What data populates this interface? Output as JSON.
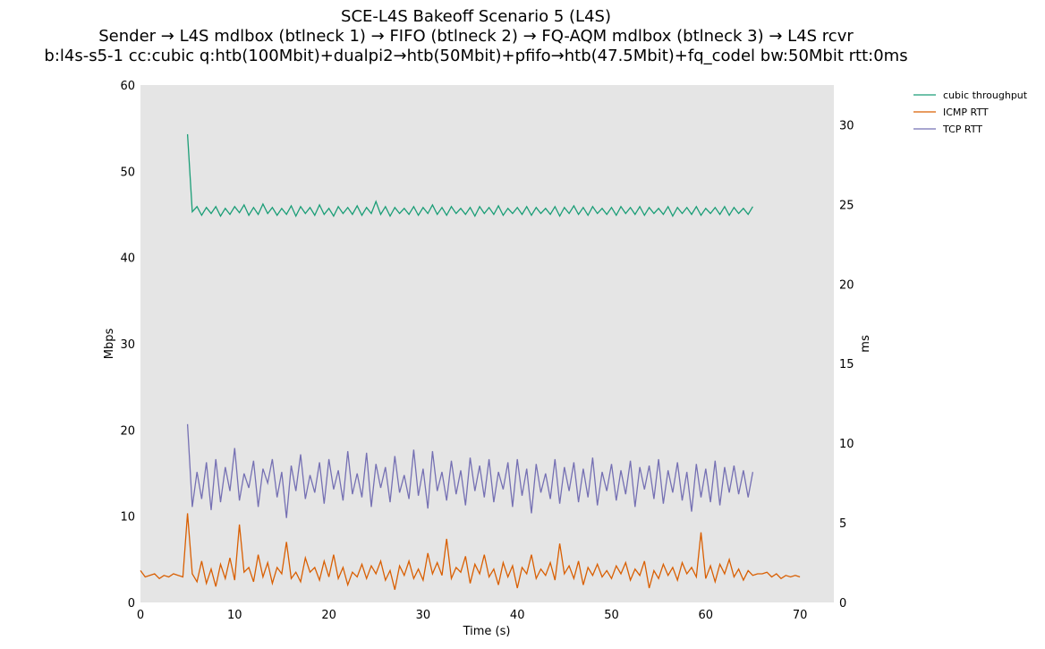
{
  "chart_data": {
    "type": "line",
    "title": [
      "SCE-L4S Bakeoff Scenario 5 (L4S)",
      "Sender → L4S mdlbox (btlneck 1) → FIFO (btlneck 2) → FQ-AQM mdlbox (btlneck 3) → L4S rcvr",
      "b:l4s-s5-1 cc:cubic q:htb(100Mbit)+dualpi2→htb(50Mbit)+pfifo→htb(47.5Mbit)+fq_codel bw:50Mbit rtt:0ms"
    ],
    "xlabel": "Time (s)",
    "ylabel_left": "Mbps",
    "ylabel_right": "ms",
    "xlim": [
      0,
      73.6
    ],
    "ylim_left": [
      0,
      60
    ],
    "ylim_right": [
      0,
      32.5
    ],
    "xticks": [
      0,
      10,
      20,
      30,
      40,
      50,
      60,
      70
    ],
    "yticks_left": [
      0,
      10,
      20,
      30,
      40,
      50,
      60
    ],
    "yticks_right": [
      0,
      5,
      10,
      15,
      20,
      25,
      30
    ],
    "grid": false,
    "background": "#e5e5e5",
    "legend_placement": "outside-top-right",
    "series": [
      {
        "name": "cubic throughput",
        "axis": "left",
        "color": "#1b9e77",
        "x_start": 5.0,
        "x_step": 0.5,
        "values": [
          54.3,
          45.3,
          45.9,
          44.9,
          45.8,
          45.1,
          45.9,
          44.8,
          45.7,
          45.0,
          45.9,
          45.2,
          46.1,
          44.9,
          45.8,
          45.0,
          46.2,
          45.1,
          45.8,
          44.9,
          45.7,
          45.0,
          46.0,
          44.8,
          45.9,
          45.1,
          45.8,
          44.9,
          46.1,
          45.0,
          45.7,
          44.8,
          45.9,
          45.1,
          45.8,
          45.0,
          46.0,
          44.9,
          45.8,
          45.1,
          46.5,
          45.0,
          45.9,
          44.8,
          45.8,
          45.1,
          45.7,
          45.0,
          45.9,
          44.9,
          45.8,
          45.1,
          46.1,
          45.0,
          45.8,
          44.9,
          45.9,
          45.1,
          45.7,
          45.0,
          45.8,
          44.8,
          45.9,
          45.1,
          45.8,
          45.0,
          46.0,
          44.9,
          45.7,
          45.1,
          45.8,
          45.0,
          45.9,
          44.9,
          45.8,
          45.1,
          45.7,
          45.0,
          45.9,
          44.8,
          45.8,
          45.1,
          46.0,
          45.0,
          45.8,
          44.9,
          45.9,
          45.1,
          45.7,
          45.0,
          45.8,
          44.9,
          45.9,
          45.1,
          45.8,
          45.0,
          45.9,
          44.9,
          45.8,
          45.1,
          45.7,
          45.0,
          45.9,
          44.8,
          45.8,
          45.1,
          45.8,
          45.0,
          45.9,
          44.9,
          45.7,
          45.1,
          45.8,
          45.0,
          45.9,
          44.9,
          45.8,
          45.1,
          45.7,
          45.0,
          45.9
        ]
      },
      {
        "name": "ICMP RTT",
        "axis": "right",
        "color": "#d95f02",
        "x_start": 0.0,
        "x_step": 0.5,
        "values": [
          2.0,
          1.6,
          1.7,
          1.8,
          1.5,
          1.7,
          1.6,
          1.8,
          1.7,
          1.6,
          5.6,
          1.8,
          1.3,
          2.6,
          1.2,
          2.1,
          1.0,
          2.4,
          1.5,
          2.8,
          1.4,
          4.9,
          1.9,
          2.2,
          1.3,
          3.0,
          1.6,
          2.5,
          1.2,
          2.2,
          1.8,
          3.8,
          1.5,
          1.9,
          1.3,
          2.8,
          1.9,
          2.2,
          1.4,
          2.6,
          1.6,
          3.0,
          1.5,
          2.2,
          1.1,
          1.9,
          1.6,
          2.4,
          1.5,
          2.3,
          1.8,
          2.6,
          1.4,
          2.0,
          0.8,
          2.3,
          1.7,
          2.6,
          1.5,
          2.1,
          1.4,
          3.1,
          1.8,
          2.5,
          1.7,
          4.0,
          1.5,
          2.2,
          1.9,
          2.9,
          1.2,
          2.4,
          1.8,
          3.0,
          1.6,
          2.1,
          1.1,
          2.5,
          1.6,
          2.3,
          0.9,
          2.2,
          1.8,
          3.0,
          1.5,
          2.1,
          1.7,
          2.5,
          1.4,
          3.7,
          1.8,
          2.3,
          1.5,
          2.6,
          1.1,
          2.2,
          1.7,
          2.4,
          1.6,
          2.0,
          1.5,
          2.3,
          1.8,
          2.5,
          1.4,
          2.1,
          1.7,
          2.6,
          0.9,
          2.0,
          1.5,
          2.4,
          1.7,
          2.2,
          1.4,
          2.5,
          1.8,
          2.2,
          1.6,
          4.4,
          1.5,
          2.3,
          1.3,
          2.4,
          1.8,
          2.7,
          1.6,
          2.1,
          1.4,
          2.0,
          1.7,
          1.8,
          1.8,
          1.9,
          1.6,
          1.8,
          1.5,
          1.7,
          1.6,
          1.7,
          1.6
        ]
      },
      {
        "name": "TCP RTT",
        "axis": "right",
        "color": "#7570b3",
        "x_start": 5.0,
        "x_step": 0.5,
        "values": [
          11.2,
          6.0,
          8.2,
          6.5,
          8.8,
          5.8,
          9.0,
          6.3,
          8.5,
          7.0,
          9.7,
          6.4,
          8.1,
          7.2,
          8.9,
          6.0,
          8.4,
          7.5,
          9.0,
          6.6,
          8.2,
          5.3,
          8.6,
          7.0,
          9.3,
          6.5,
          8.0,
          6.9,
          8.8,
          6.2,
          9.0,
          7.1,
          8.3,
          6.4,
          9.5,
          6.8,
          8.1,
          6.6,
          9.4,
          6.0,
          8.7,
          7.2,
          8.5,
          6.3,
          9.2,
          6.9,
          8.0,
          6.5,
          9.6,
          6.7,
          8.4,
          5.9,
          9.5,
          7.0,
          8.2,
          6.4,
          8.9,
          6.8,
          8.3,
          6.1,
          9.1,
          7.0,
          8.6,
          6.6,
          9.0,
          6.3,
          8.2,
          7.1,
          8.8,
          6.0,
          9.0,
          6.7,
          8.4,
          5.6,
          8.7,
          6.9,
          8.1,
          6.5,
          9.0,
          6.2,
          8.5,
          7.0,
          8.8,
          6.3,
          8.4,
          6.6,
          9.1,
          6.1,
          8.2,
          7.0,
          8.7,
          6.4,
          8.3,
          6.8,
          8.9,
          6.0,
          8.5,
          7.1,
          8.6,
          6.5,
          9.0,
          6.2,
          8.3,
          6.9,
          8.8,
          6.4,
          8.2,
          5.7,
          8.7,
          6.6,
          8.4,
          6.3,
          8.9,
          6.1,
          8.5,
          6.9,
          8.6,
          6.8,
          8.3,
          6.6,
          8.2
        ]
      }
    ]
  }
}
